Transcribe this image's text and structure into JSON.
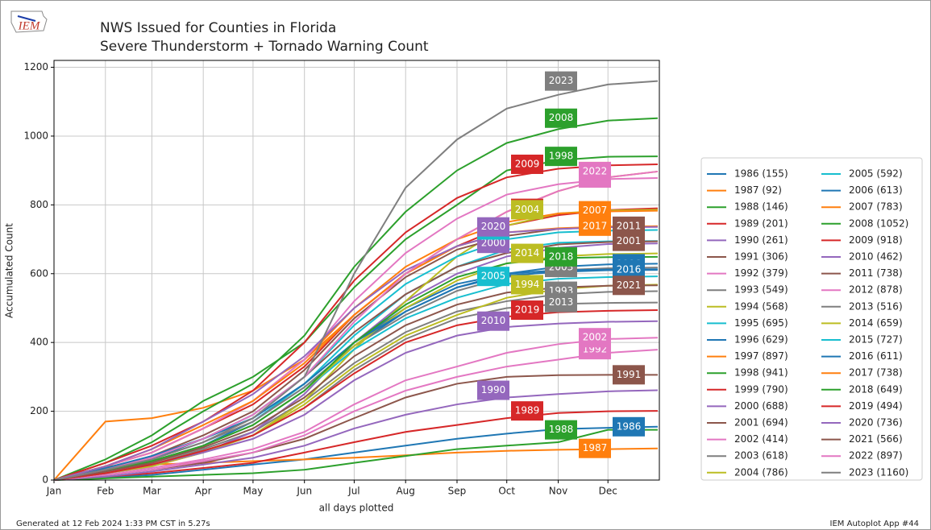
{
  "chart_data": {
    "type": "line",
    "title": "NWS Issued for Counties in Florida",
    "subtitle": "Severe Thunderstorm + Tornado Warning Count",
    "logo_text": "IEM",
    "ylabel": "Accumulated Count",
    "xlabel": "all days plotted",
    "footer_left": "Generated at 12 Feb 2024 1:33 PM CST in 5.27s",
    "footer_right": "IEM Autoplot App #44",
    "x": [
      1,
      32,
      60,
      91,
      121,
      152,
      182,
      213,
      244,
      274,
      305,
      335,
      365
    ],
    "xlim": [
      1,
      366
    ],
    "ylim": [
      0,
      1220
    ],
    "xticks": [
      {
        "value": 1,
        "label": "Jan"
      },
      {
        "value": 32,
        "label": "Feb"
      },
      {
        "value": 60,
        "label": "Mar"
      },
      {
        "value": 91,
        "label": "Apr"
      },
      {
        "value": 121,
        "label": "May"
      },
      {
        "value": 152,
        "label": "Jun"
      },
      {
        "value": 182,
        "label": "Jul"
      },
      {
        "value": 213,
        "label": "Aug"
      },
      {
        "value": 244,
        "label": "Sep"
      },
      {
        "value": 274,
        "label": "Oct"
      },
      {
        "value": 305,
        "label": "Nov"
      },
      {
        "value": 335,
        "label": "Dec"
      }
    ],
    "yticks": [
      0,
      200,
      400,
      600,
      800,
      1000,
      1200
    ],
    "grid": true,
    "series": [
      {
        "name": "1986 (155)",
        "label": "1986",
        "color": "#1f77b4",
        "values": [
          0,
          8,
          15,
          30,
          45,
          60,
          80,
          100,
          120,
          135,
          148,
          152,
          155
        ]
      },
      {
        "name": "1987 (92)",
        "label": "1987",
        "color": "#ff7f0e",
        "values": [
          0,
          40,
          45,
          50,
          55,
          60,
          65,
          72,
          80,
          85,
          88,
          90,
          92
        ]
      },
      {
        "name": "1988 (146)",
        "label": "1988",
        "color": "#2ca02c",
        "values": [
          0,
          5,
          10,
          15,
          20,
          30,
          50,
          70,
          90,
          100,
          110,
          146,
          146
        ]
      },
      {
        "name": "1989 (201)",
        "label": "1989",
        "color": "#d62728",
        "values": [
          0,
          10,
          20,
          35,
          50,
          80,
          110,
          140,
          160,
          180,
          195,
          200,
          201
        ]
      },
      {
        "name": "1990 (261)",
        "label": "1990",
        "color": "#9467bd",
        "values": [
          0,
          10,
          25,
          45,
          65,
          100,
          150,
          190,
          220,
          240,
          250,
          258,
          261
        ]
      },
      {
        "name": "1991 (306)",
        "label": "1991",
        "color": "#8c564b",
        "values": [
          0,
          15,
          30,
          50,
          80,
          120,
          180,
          240,
          280,
          300,
          305,
          306,
          306
        ]
      },
      {
        "name": "1992 (379)",
        "label": "1992",
        "color": "#e377c2",
        "values": [
          0,
          15,
          30,
          55,
          80,
          130,
          200,
          260,
          300,
          330,
          350,
          370,
          379
        ]
      },
      {
        "name": "1993 (549)",
        "label": "1993",
        "color": "#7f7f7f",
        "values": [
          0,
          20,
          45,
          90,
          140,
          230,
          340,
          430,
          490,
          520,
          540,
          547,
          549
        ]
      },
      {
        "name": "1994 (568)",
        "label": "1994",
        "color": "#bcbd22",
        "values": [
          0,
          20,
          40,
          80,
          130,
          220,
          330,
          420,
          480,
          530,
          555,
          565,
          568
        ]
      },
      {
        "name": "1995 (695)",
        "label": "1995",
        "color": "#17becf",
        "values": [
          0,
          25,
          55,
          100,
          170,
          280,
          420,
          540,
          620,
          670,
          690,
          694,
          695
        ]
      },
      {
        "name": "1996 (629)",
        "label": "1996",
        "color": "#1f77b4",
        "values": [
          0,
          25,
          50,
          100,
          170,
          270,
          390,
          490,
          560,
          600,
          620,
          627,
          629
        ]
      },
      {
        "name": "1997 (897)",
        "label": "1997",
        "color": "#ff7f0e",
        "values": [
          0,
          170,
          180,
          210,
          260,
          350,
          480,
          600,
          700,
          780,
          840,
          880,
          897
        ]
      },
      {
        "name": "1998 (941)",
        "label": "1998",
        "color": "#2ca02c",
        "values": [
          0,
          60,
          130,
          230,
          300,
          400,
          560,
          700,
          800,
          900,
          930,
          940,
          941
        ]
      },
      {
        "name": "1999 (790)",
        "label": "1999",
        "color": "#d62728",
        "values": [
          0,
          40,
          80,
          150,
          220,
          330,
          480,
          600,
          680,
          740,
          770,
          785,
          790
        ]
      },
      {
        "name": "2000 (688)",
        "label": "2000",
        "color": "#9467bd",
        "values": [
          0,
          20,
          40,
          80,
          140,
          250,
          400,
          520,
          600,
          650,
          675,
          686,
          688
        ]
      },
      {
        "name": "2001 (694)",
        "label": "2001",
        "color": "#8c564b",
        "values": [
          0,
          30,
          60,
          120,
          190,
          300,
          430,
          540,
          620,
          660,
          685,
          692,
          694
        ]
      },
      {
        "name": "2002 (414)",
        "label": "2002",
        "color": "#e377c2",
        "values": [
          0,
          20,
          35,
          60,
          90,
          140,
          220,
          290,
          330,
          370,
          395,
          410,
          414
        ]
      },
      {
        "name": "2003 (618)",
        "label": "2003",
        "color": "#7f7f7f",
        "values": [
          0,
          30,
          60,
          110,
          170,
          270,
          390,
          480,
          550,
          590,
          610,
          616,
          618
        ]
      },
      {
        "name": "2004 (786)",
        "label": "2004",
        "color": "#bcbd22",
        "values": [
          0,
          20,
          40,
          80,
          130,
          230,
          380,
          520,
          650,
          740,
          775,
          784,
          786
        ]
      },
      {
        "name": "2005 (592)",
        "label": "2005",
        "color": "#17becf",
        "values": [
          0,
          25,
          55,
          100,
          160,
          260,
          380,
          470,
          530,
          570,
          585,
          590,
          592
        ]
      },
      {
        "name": "2006 (613)",
        "label": "2006",
        "color": "#1f77b4",
        "values": [
          0,
          30,
          60,
          120,
          180,
          280,
          400,
          500,
          570,
          600,
          610,
          612,
          613
        ]
      },
      {
        "name": "2007 (783)",
        "label": "2007",
        "color": "#ff7f0e",
        "values": [
          0,
          40,
          80,
          150,
          230,
          350,
          500,
          620,
          700,
          750,
          775,
          781,
          783
        ]
      },
      {
        "name": "2008 (1052)",
        "label": "2008",
        "color": "#2ca02c",
        "values": [
          0,
          50,
          110,
          200,
          280,
          420,
          620,
          780,
          900,
          980,
          1020,
          1045,
          1052
        ]
      },
      {
        "name": "2009 (918)",
        "label": "2009",
        "color": "#d62728",
        "values": [
          0,
          50,
          100,
          170,
          260,
          400,
          580,
          720,
          820,
          880,
          905,
          915,
          918
        ]
      },
      {
        "name": "2010 (462)",
        "label": "2010",
        "color": "#9467bd",
        "values": [
          0,
          20,
          45,
          80,
          120,
          190,
          290,
          370,
          420,
          445,
          455,
          460,
          462
        ]
      },
      {
        "name": "2011 (738)",
        "label": "2011",
        "color": "#8c564b",
        "values": [
          0,
          30,
          70,
          130,
          200,
          320,
          470,
          590,
          670,
          710,
          730,
          736,
          738
        ]
      },
      {
        "name": "2012 (878)",
        "label": "2012",
        "color": "#e377c2",
        "values": [
          0,
          40,
          80,
          150,
          230,
          350,
          520,
          660,
          760,
          830,
          860,
          875,
          878
        ]
      },
      {
        "name": "2013 (516)",
        "label": "2013",
        "color": "#7f7f7f",
        "values": [
          0,
          20,
          45,
          85,
          130,
          210,
          320,
          410,
          470,
          500,
          512,
          515,
          516
        ]
      },
      {
        "name": "2014 (659)",
        "label": "2014",
        "color": "#bcbd22",
        "values": [
          0,
          25,
          55,
          100,
          160,
          260,
          390,
          500,
          580,
          630,
          650,
          657,
          659
        ]
      },
      {
        "name": "2015 (727)",
        "label": "2015",
        "color": "#17becf",
        "values": [
          0,
          30,
          65,
          120,
          190,
          300,
          450,
          570,
          650,
          700,
          720,
          725,
          727
        ]
      },
      {
        "name": "2016 (611)",
        "label": "2016",
        "color": "#1f77b4",
        "values": [
          0,
          35,
          70,
          120,
          180,
          280,
          400,
          490,
          560,
          595,
          605,
          610,
          611
        ]
      },
      {
        "name": "2017 (738)",
        "label": "2017",
        "color": "#ff7f0e",
        "values": [
          0,
          40,
          90,
          160,
          230,
          340,
          480,
          600,
          680,
          720,
          732,
          737,
          738
        ]
      },
      {
        "name": "2018 (649)",
        "label": "2018",
        "color": "#2ca02c",
        "values": [
          0,
          25,
          55,
          100,
          160,
          260,
          400,
          510,
          590,
          630,
          645,
          648,
          649
        ]
      },
      {
        "name": "2019 (494)",
        "label": "2019",
        "color": "#d62728",
        "values": [
          0,
          20,
          45,
          85,
          130,
          210,
          310,
          400,
          450,
          475,
          488,
          492,
          494
        ]
      },
      {
        "name": "2020 (736)",
        "label": "2020",
        "color": "#9467bd",
        "values": [
          0,
          40,
          90,
          170,
          250,
          360,
          500,
          610,
          680,
          720,
          730,
          735,
          736
        ]
      },
      {
        "name": "2021 (566)",
        "label": "2021",
        "color": "#8c564b",
        "values": [
          0,
          25,
          50,
          95,
          150,
          240,
          360,
          450,
          510,
          545,
          560,
          565,
          566
        ]
      },
      {
        "name": "2022 (897)",
        "label": "2022",
        "color": "#e377c2",
        "values": [
          0,
          30,
          65,
          120,
          190,
          300,
          460,
          600,
          700,
          780,
          840,
          880,
          897
        ]
      },
      {
        "name": "2023 (1160)",
        "label": "2023",
        "color": "#7f7f7f",
        "values": [
          0,
          30,
          60,
          110,
          180,
          300,
          600,
          850,
          990,
          1080,
          1120,
          1150,
          1160
        ]
      }
    ]
  }
}
